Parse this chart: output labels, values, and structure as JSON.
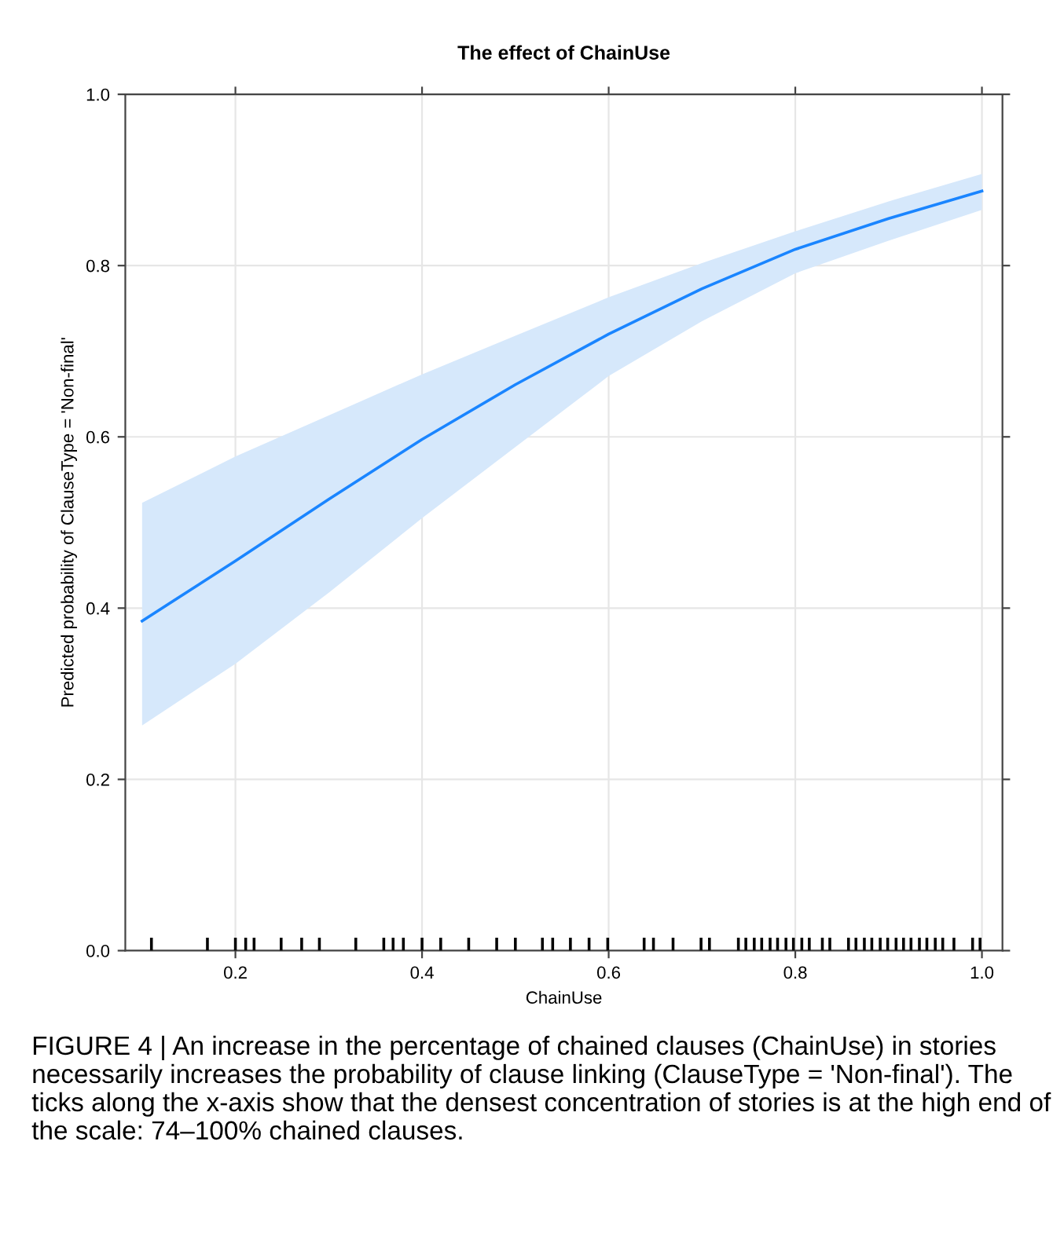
{
  "chart_data": {
    "type": "line",
    "title": "The effect of ChainUse",
    "xlabel": "ChainUse",
    "ylabel": "Predicted probability of ClauseType = 'Non-final'",
    "xlim": [
      0.082,
      1.022
    ],
    "xticks": [
      {
        "value": 0.2,
        "label": "0.2"
      },
      {
        "value": 0.4,
        "label": "0.4"
      },
      {
        "value": 0.6,
        "label": "0.6"
      },
      {
        "value": 0.8,
        "label": "0.8"
      },
      {
        "value": 1.0,
        "label": "1.0"
      }
    ],
    "ylim": [
      0,
      1
    ],
    "yticks": [
      {
        "value": 0,
        "label": "0.0"
      },
      {
        "value": 0.2,
        "label": "0.2"
      },
      {
        "value": 0.4,
        "label": "0.4"
      },
      {
        "value": 0.6,
        "label": "0.6"
      },
      {
        "value": 0.8,
        "label": "0.8"
      },
      {
        "value": 1,
        "label": "1.0"
      }
    ],
    "grid": true,
    "series": [
      {
        "color": "#1a85ff",
        "x": [
          0.1,
          0.2,
          0.3,
          0.4,
          0.5,
          0.6,
          0.7,
          0.8,
          0.9,
          1.0
        ],
        "values": [
          0.385,
          0.455,
          0.527,
          0.597,
          0.661,
          0.72,
          0.773,
          0.819,
          0.855,
          0.887
        ],
        "lower": [
          0.263,
          0.335,
          0.418,
          0.505,
          0.588,
          0.671,
          0.735,
          0.791,
          0.829,
          0.865
        ],
        "upper": [
          0.523,
          0.577,
          0.625,
          0.673,
          0.718,
          0.763,
          0.803,
          0.84,
          0.875,
          0.907
        ]
      },
      {
        "type": "bar",
        "color": "#000000",
        "x": [
          0.11,
          0.17,
          0.2,
          0.211,
          0.22,
          0.249,
          0.271,
          0.29,
          0.329,
          0.359,
          0.369,
          0.38,
          0.4,
          0.42,
          0.45,
          0.48,
          0.5,
          0.529,
          0.54,
          0.559,
          0.579,
          0.599,
          0.638,
          0.648,
          0.669,
          0.699,
          0.708,
          0.739,
          0.747,
          0.756,
          0.764,
          0.773,
          0.781,
          0.79,
          0.798,
          0.807,
          0.815,
          0.829,
          0.837,
          0.857,
          0.865,
          0.874,
          0.882,
          0.891,
          0.899,
          0.908,
          0.916,
          0.924,
          0.933,
          0.941,
          0.95,
          0.958,
          0.97,
          0.99,
          0.998
        ],
        "values": [
          0.015,
          0.015,
          0.015,
          0.015,
          0.015,
          0.015,
          0.015,
          0.015,
          0.015,
          0.015,
          0.015,
          0.015,
          0.015,
          0.015,
          0.015,
          0.015,
          0.015,
          0.015,
          0.015,
          0.015,
          0.015,
          0.015,
          0.015,
          0.015,
          0.015,
          0.015,
          0.015,
          0.015,
          0.015,
          0.015,
          0.015,
          0.015,
          0.015,
          0.015,
          0.015,
          0.015,
          0.015,
          0.015,
          0.015,
          0.015,
          0.015,
          0.015,
          0.015,
          0.015,
          0.015,
          0.015,
          0.015,
          0.015,
          0.015,
          0.015,
          0.015,
          0.015,
          0.015,
          0.015,
          0.015
        ]
      }
    ],
    "annotations": [
      "FIGURE 4 | An increase in the percentage of chained clauses (ChainUse) in stories necessarily increases the probability of clause linking (ClauseType = 'Non-final'). The ticks along the x-axis show that the densest concentration of stories is at the high end of the scale: 74–100% chained clauses."
    ]
  }
}
